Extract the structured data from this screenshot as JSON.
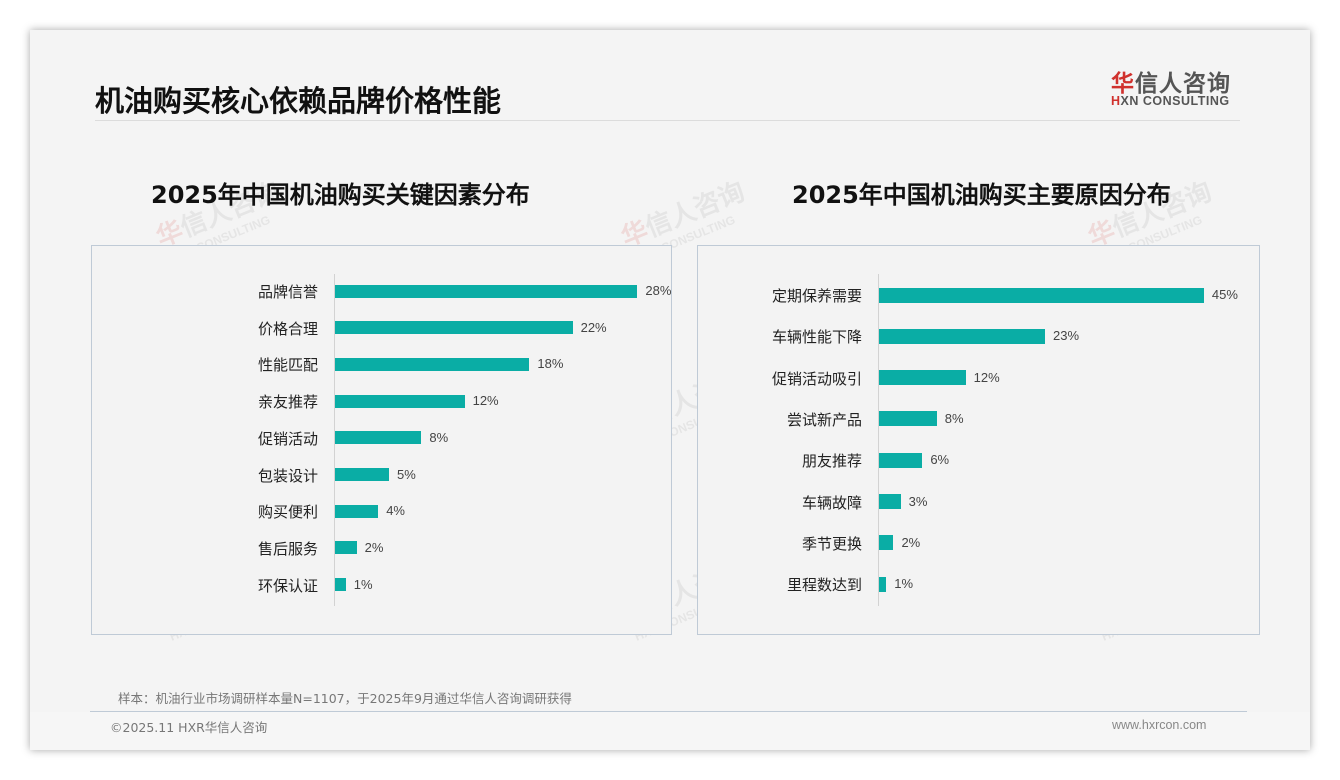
{
  "page": {
    "title": "机油购买核心依赖品牌价格性能",
    "logo": {
      "cn_red": "华",
      "cn_rest": "信人咨询",
      "en_red": "H",
      "en_rest": "XN CONSULTING"
    },
    "watermark": {
      "cn_red": "华",
      "cn_rest": "信人咨询",
      "en": "HXN CONSULTING"
    },
    "note": "样本：机油行业市场调研样本量N=1107，于2025年9月通过华信人咨询调研获得",
    "copyright": "©2025.11 HXR华信人咨询",
    "website": "www.hxrcon.com",
    "accent_color": "#0aada5",
    "brand_color": "#d0312d"
  },
  "chart_data": [
    {
      "type": "bar",
      "orientation": "horizontal",
      "title": "2025年中国机油购买关键因素分布",
      "categories": [
        "品牌信誉",
        "价格合理",
        "性能匹配",
        "亲友推荐",
        "促销活动",
        "包装设计",
        "购买便利",
        "售后服务",
        "环保认证"
      ],
      "values": [
        28,
        22,
        18,
        12,
        8,
        5,
        4,
        2,
        1
      ],
      "labels": [
        "28%",
        "22%",
        "18%",
        "12%",
        "8%",
        "5%",
        "4%",
        "2%",
        "1%"
      ],
      "unit": "%",
      "xlabel": "",
      "ylabel": "",
      "grid": false,
      "legend": null,
      "color": "#0aada5"
    },
    {
      "type": "bar",
      "orientation": "horizontal",
      "title": "2025年中国机油购买主要原因分布",
      "categories": [
        "定期保养需要",
        "车辆性能下降",
        "促销活动吸引",
        "尝试新产品",
        "朋友推荐",
        "车辆故障",
        "季节更换",
        "里程数达到"
      ],
      "values": [
        45,
        23,
        12,
        8,
        6,
        3,
        2,
        1
      ],
      "labels": [
        "45%",
        "23%",
        "12%",
        "8%",
        "6%",
        "3%",
        "2%",
        "1%"
      ],
      "unit": "%",
      "xlabel": "",
      "ylabel": "",
      "grid": false,
      "legend": null,
      "color": "#0aada5"
    }
  ]
}
